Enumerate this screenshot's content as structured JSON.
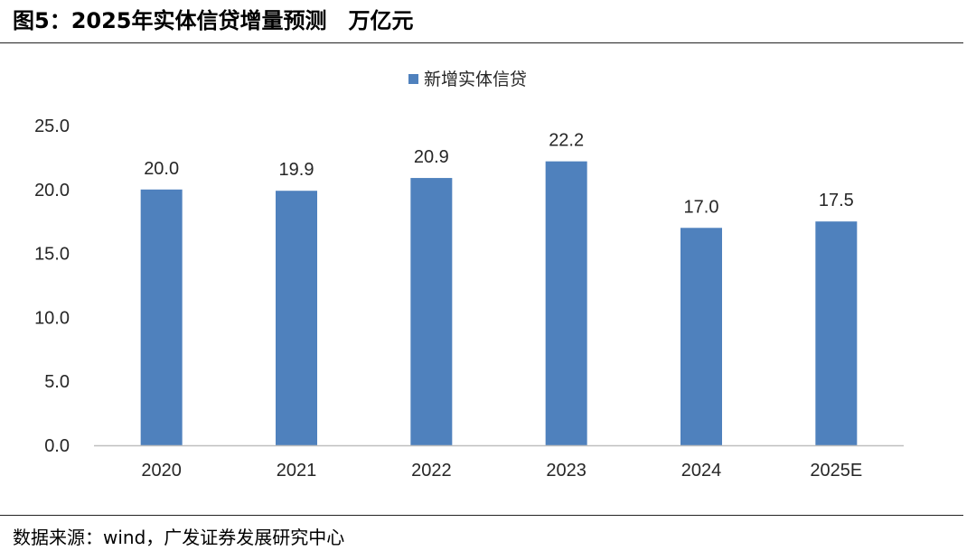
{
  "header": {
    "title": "图5：2025年实体信贷增量预测",
    "unit": "万亿元"
  },
  "footer": {
    "source": "数据来源：wind，广发证券发展研究中心"
  },
  "chart_data": {
    "type": "bar",
    "categories": [
      "2020",
      "2021",
      "2022",
      "2023",
      "2024",
      "2025E"
    ],
    "series": [
      {
        "name": "新增实体信贷",
        "values": [
          20.0,
          19.9,
          20.9,
          22.2,
          17.0,
          17.5
        ]
      }
    ],
    "data_labels": [
      "20.0",
      "19.9",
      "20.9",
      "22.2",
      "17.0",
      "17.5"
    ],
    "y_ticks": [
      "0.0",
      "5.0",
      "10.0",
      "15.0",
      "20.0",
      "25.0"
    ],
    "ylim": [
      0,
      25
    ],
    "grid": false,
    "legend_position": "top-center",
    "colors": {
      "bar": "#4f81bd",
      "axis": "#bfbfbf",
      "text": "#262626"
    }
  }
}
